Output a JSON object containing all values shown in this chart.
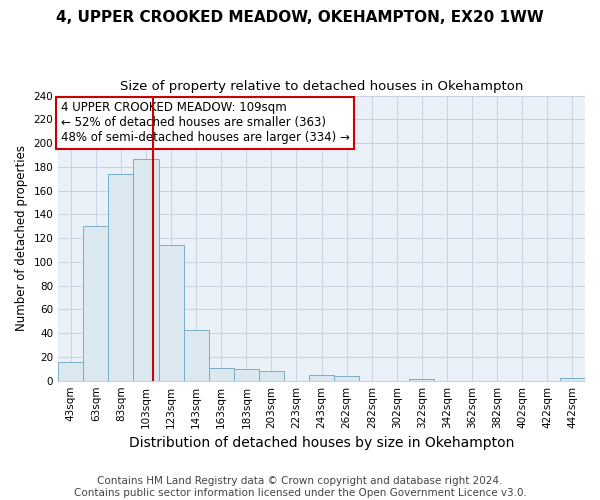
{
  "title": "4, UPPER CROOKED MEADOW, OKEHAMPTON, EX20 1WW",
  "subtitle": "Size of property relative to detached houses in Okehampton",
  "xlabel": "Distribution of detached houses by size in Okehampton",
  "ylabel": "Number of detached properties",
  "footer_line1": "Contains HM Land Registry data © Crown copyright and database right 2024.",
  "footer_line2": "Contains public sector information licensed under the Open Government Licence v3.0.",
  "annotation_line1": "4 UPPER CROOKED MEADOW: 109sqm",
  "annotation_line2": "← 52% of detached houses are smaller (363)",
  "annotation_line3": "48% of semi-detached houses are larger (334) →",
  "bar_labels": [
    "43sqm",
    "63sqm",
    "83sqm",
    "103sqm",
    "123sqm",
    "143sqm",
    "163sqm",
    "183sqm",
    "203sqm",
    "223sqm",
    "243sqm",
    "262sqm",
    "282sqm",
    "302sqm",
    "322sqm",
    "342sqm",
    "362sqm",
    "382sqm",
    "402sqm",
    "422sqm",
    "442sqm"
  ],
  "bar_values": [
    16,
    130,
    174,
    187,
    114,
    43,
    11,
    10,
    8,
    0,
    5,
    4,
    0,
    0,
    1,
    0,
    0,
    0,
    0,
    0,
    2
  ],
  "bar_color": "#dce8f0",
  "bar_edge_color": "#7aaec8",
  "vline_x_index": 3,
  "vline_color": "#cc0000",
  "ylim": [
    0,
    240
  ],
  "yticks": [
    0,
    20,
    40,
    60,
    80,
    100,
    120,
    140,
    160,
    180,
    200,
    220,
    240
  ],
  "bg_color": "#eaf0f8",
  "grid_color": "#c8d4e0",
  "annotation_box_edge_color": "#cc0000",
  "title_fontsize": 11,
  "subtitle_fontsize": 9.5,
  "xlabel_fontsize": 10,
  "ylabel_fontsize": 8.5,
  "tick_fontsize": 7.5,
  "annotation_fontsize": 8.5,
  "footer_fontsize": 7.5
}
